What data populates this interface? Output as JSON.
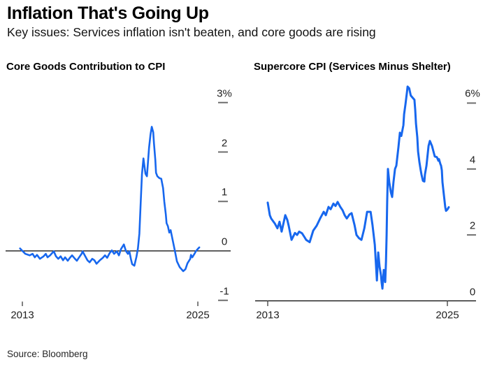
{
  "header": {
    "title": "Inflation That's Going Up",
    "subtitle": "Key issues: Services inflation isn't beaten, and core goods are rising"
  },
  "footer": {
    "source": "Source: Bloomberg"
  },
  "colors": {
    "line_blue": "#1767ee",
    "axis_black": "#000000",
    "tick_mark_gray": "#6e6e6e",
    "x_tick_gray": "#555555",
    "tick_text": "#1f1f1f",
    "background": "#ffffff"
  },
  "chart_data": [
    {
      "id": "left",
      "type": "line",
      "title": "Core Goods Contribution to CPI",
      "unit": "%",
      "xlim": [
        2012.8,
        2025.35
      ],
      "ylim": [
        -1.17,
        3.1
      ],
      "grid": false,
      "legend": "none",
      "zero_baseline": true,
      "y_ticks": [
        {
          "label": "3%",
          "value": 3
        },
        {
          "label": "2",
          "value": 2
        },
        {
          "label": "1",
          "value": 1
        },
        {
          "label": "0",
          "value": 0
        },
        {
          "label": "-1",
          "value": -1
        }
      ],
      "x_ticks": [
        {
          "label": "2013",
          "value": 2013
        },
        {
          "label": "2025",
          "value": 2025
        }
      ],
      "series": [
        {
          "name": "Core goods contribution to CPI (pct pts)",
          "color": "#1767ee",
          "width": 2.6,
          "points": [
            [
              2012.84,
              0.05
            ],
            [
              2013.0,
              0.0
            ],
            [
              2013.2,
              -0.06
            ],
            [
              2013.5,
              -0.09
            ],
            [
              2013.7,
              -0.06
            ],
            [
              2013.85,
              -0.13
            ],
            [
              2014.0,
              -0.08
            ],
            [
              2014.2,
              -0.16
            ],
            [
              2014.45,
              -0.11
            ],
            [
              2014.6,
              -0.06
            ],
            [
              2014.72,
              -0.13
            ],
            [
              2014.9,
              -0.09
            ],
            [
              2015.05,
              -0.04
            ],
            [
              2015.15,
              -0.01
            ],
            [
              2015.3,
              -0.11
            ],
            [
              2015.45,
              -0.16
            ],
            [
              2015.62,
              -0.11
            ],
            [
              2015.78,
              -0.19
            ],
            [
              2015.92,
              -0.13
            ],
            [
              2016.1,
              -0.2
            ],
            [
              2016.25,
              -0.14
            ],
            [
              2016.4,
              -0.09
            ],
            [
              2016.6,
              -0.16
            ],
            [
              2016.73,
              -0.2
            ],
            [
              2016.88,
              -0.13
            ],
            [
              2017.05,
              -0.06
            ],
            [
              2017.12,
              -0.01
            ],
            [
              2017.3,
              -0.11
            ],
            [
              2017.45,
              -0.19
            ],
            [
              2017.6,
              -0.23
            ],
            [
              2017.78,
              -0.16
            ],
            [
              2017.93,
              -0.19
            ],
            [
              2018.07,
              -0.26
            ],
            [
              2018.3,
              -0.19
            ],
            [
              2018.5,
              -0.14
            ],
            [
              2018.65,
              -0.09
            ],
            [
              2018.8,
              -0.14
            ],
            [
              2018.98,
              -0.04
            ],
            [
              2019.12,
              0.01
            ],
            [
              2019.27,
              -0.06
            ],
            [
              2019.46,
              -0.01
            ],
            [
              2019.6,
              -0.09
            ],
            [
              2019.75,
              0.04
            ],
            [
              2019.94,
              0.13
            ],
            [
              2020.08,
              0.0
            ],
            [
              2020.22,
              -0.06
            ],
            [
              2020.32,
              -0.01
            ],
            [
              2020.42,
              -0.16
            ],
            [
              2020.51,
              -0.27
            ],
            [
              2020.66,
              -0.3
            ],
            [
              2020.8,
              -0.12
            ],
            [
              2020.9,
              0.05
            ],
            [
              2021.0,
              0.35
            ],
            [
              2021.09,
              0.95
            ],
            [
              2021.18,
              1.55
            ],
            [
              2021.28,
              1.87
            ],
            [
              2021.42,
              1.56
            ],
            [
              2021.52,
              1.51
            ],
            [
              2021.66,
              2.08
            ],
            [
              2021.76,
              2.35
            ],
            [
              2021.85,
              2.51
            ],
            [
              2021.95,
              2.4
            ],
            [
              2022.0,
              2.17
            ],
            [
              2022.09,
              1.84
            ],
            [
              2022.14,
              1.58
            ],
            [
              2022.23,
              1.51
            ],
            [
              2022.38,
              1.47
            ],
            [
              2022.5,
              1.46
            ],
            [
              2022.62,
              1.27
            ],
            [
              2022.71,
              0.99
            ],
            [
              2022.81,
              0.74
            ],
            [
              2022.86,
              0.56
            ],
            [
              2022.95,
              0.5
            ],
            [
              2023.05,
              0.37
            ],
            [
              2023.14,
              0.42
            ],
            [
              2023.29,
              0.2
            ],
            [
              2023.43,
              0.0
            ],
            [
              2023.57,
              -0.21
            ],
            [
              2023.76,
              -0.33
            ],
            [
              2024.0,
              -0.41
            ],
            [
              2024.15,
              -0.37
            ],
            [
              2024.29,
              -0.25
            ],
            [
              2024.48,
              -0.16
            ],
            [
              2024.53,
              -0.08
            ],
            [
              2024.62,
              -0.13
            ],
            [
              2024.77,
              -0.06
            ],
            [
              2024.86,
              -0.01
            ],
            [
              2025.0,
              0.04
            ],
            [
              2025.1,
              0.07
            ]
          ]
        }
      ]
    },
    {
      "id": "right",
      "type": "line",
      "title": "Supercore CPI (Services Minus Shelter)",
      "unit": "%",
      "xlim": [
        2013.0,
        2025.15
      ],
      "ylim": [
        0,
        6.6
      ],
      "grid": false,
      "legend": "none",
      "zero_baseline": true,
      "y_ticks": [
        {
          "label": "6%",
          "value": 6
        },
        {
          "label": "4",
          "value": 4
        },
        {
          "label": "2",
          "value": 2
        },
        {
          "label": "0",
          "value": 0
        }
      ],
      "x_ticks": [
        {
          "label": "2013",
          "value": 2013
        },
        {
          "label": "2025",
          "value": 2025
        }
      ],
      "series": [
        {
          "name": "Supercore CPI YoY %",
          "color": "#1767ee",
          "width": 3,
          "points": [
            [
              2013.0,
              2.98
            ],
            [
              2013.14,
              2.6
            ],
            [
              2013.23,
              2.5
            ],
            [
              2013.47,
              2.35
            ],
            [
              2013.65,
              2.2
            ],
            [
              2013.79,
              2.4
            ],
            [
              2013.93,
              2.1
            ],
            [
              2014.17,
              2.6
            ],
            [
              2014.31,
              2.45
            ],
            [
              2014.4,
              2.28
            ],
            [
              2014.59,
              1.85
            ],
            [
              2014.82,
              2.06
            ],
            [
              2014.96,
              2.0
            ],
            [
              2015.1,
              2.1
            ],
            [
              2015.29,
              2.05
            ],
            [
              2015.43,
              1.95
            ],
            [
              2015.57,
              1.85
            ],
            [
              2015.8,
              1.78
            ],
            [
              2016.04,
              2.13
            ],
            [
              2016.27,
              2.28
            ],
            [
              2016.5,
              2.5
            ],
            [
              2016.74,
              2.7
            ],
            [
              2016.88,
              2.6
            ],
            [
              2017.06,
              2.85
            ],
            [
              2017.2,
              2.78
            ],
            [
              2017.39,
              2.95
            ],
            [
              2017.53,
              2.88
            ],
            [
              2017.67,
              3.0
            ],
            [
              2017.85,
              2.85
            ],
            [
              2018.0,
              2.75
            ],
            [
              2018.14,
              2.6
            ],
            [
              2018.28,
              2.5
            ],
            [
              2018.46,
              2.62
            ],
            [
              2018.6,
              2.66
            ],
            [
              2018.8,
              2.3
            ],
            [
              2018.93,
              2.0
            ],
            [
              2019.1,
              1.9
            ],
            [
              2019.26,
              1.85
            ],
            [
              2019.45,
              2.2
            ],
            [
              2019.64,
              2.7
            ],
            [
              2019.87,
              2.7
            ],
            [
              2020.0,
              2.3
            ],
            [
              2020.15,
              1.7
            ],
            [
              2020.29,
              0.62
            ],
            [
              2020.38,
              1.47
            ],
            [
              2020.47,
              1.04
            ],
            [
              2020.52,
              0.9
            ],
            [
              2020.57,
              0.77
            ],
            [
              2020.61,
              0.55
            ],
            [
              2020.66,
              0.37
            ],
            [
              2020.75,
              0.94
            ],
            [
              2020.85,
              0.57
            ],
            [
              2020.9,
              1.2
            ],
            [
              2020.94,
              2.0
            ],
            [
              2020.98,
              3.0
            ],
            [
              2021.03,
              4.0
            ],
            [
              2021.12,
              3.6
            ],
            [
              2021.22,
              3.3
            ],
            [
              2021.31,
              3.15
            ],
            [
              2021.4,
              3.6
            ],
            [
              2021.5,
              4.0
            ],
            [
              2021.59,
              4.1
            ],
            [
              2021.73,
              4.66
            ],
            [
              2021.83,
              5.1
            ],
            [
              2021.92,
              5.0
            ],
            [
              2022.06,
              5.33
            ],
            [
              2022.11,
              5.66
            ],
            [
              2022.2,
              5.97
            ],
            [
              2022.3,
              6.33
            ],
            [
              2022.34,
              6.5
            ],
            [
              2022.45,
              6.45
            ],
            [
              2022.55,
              6.23
            ],
            [
              2022.7,
              6.15
            ],
            [
              2022.8,
              6.1
            ],
            [
              2022.85,
              5.8
            ],
            [
              2022.9,
              5.38
            ],
            [
              2022.99,
              4.96
            ],
            [
              2023.04,
              4.53
            ],
            [
              2023.13,
              4.21
            ],
            [
              2023.22,
              3.96
            ],
            [
              2023.27,
              3.83
            ],
            [
              2023.37,
              3.64
            ],
            [
              2023.46,
              3.62
            ],
            [
              2023.5,
              3.83
            ],
            [
              2023.6,
              4.1
            ],
            [
              2023.74,
              4.7
            ],
            [
              2023.83,
              4.85
            ],
            [
              2023.97,
              4.7
            ],
            [
              2024.07,
              4.53
            ],
            [
              2024.16,
              4.38
            ],
            [
              2024.3,
              4.36
            ],
            [
              2024.4,
              4.25
            ],
            [
              2024.44,
              4.3
            ],
            [
              2024.53,
              4.15
            ],
            [
              2024.58,
              4.1
            ],
            [
              2024.63,
              3.96
            ],
            [
              2024.67,
              3.6
            ],
            [
              2024.77,
              3.2
            ],
            [
              2024.86,
              2.84
            ],
            [
              2024.91,
              2.73
            ],
            [
              2025.0,
              2.77
            ],
            [
              2025.09,
              2.84
            ]
          ]
        }
      ]
    }
  ]
}
